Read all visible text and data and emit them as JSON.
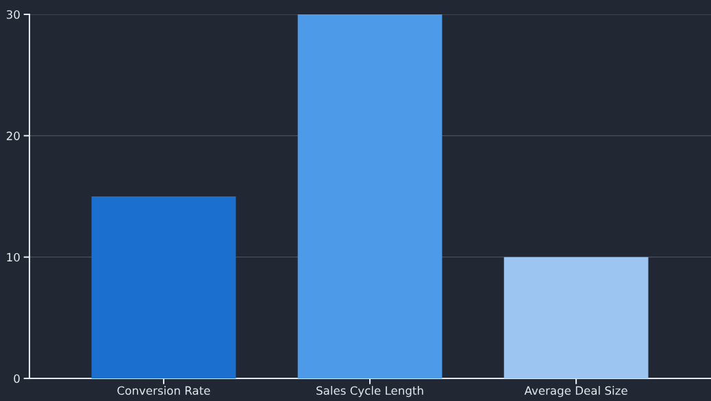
{
  "chart_data": {
    "type": "bar",
    "categories": [
      "Conversion Rate",
      "Sales Cycle Length",
      "Average Deal Size"
    ],
    "values": [
      15,
      30,
      10
    ],
    "colors": [
      "#1a6fcf",
      "#4d9be8",
      "#9cc5f2"
    ],
    "ylim": [
      0,
      30
    ],
    "yticks": [
      0,
      10,
      20,
      30
    ],
    "grid": "y",
    "legend": false
  }
}
